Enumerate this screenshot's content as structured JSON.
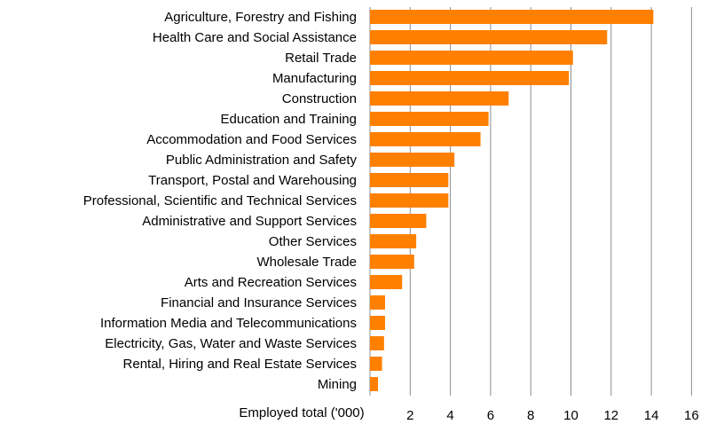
{
  "chart_data": {
    "type": "bar",
    "orientation": "horizontal",
    "xlabel": "Employed total ('000)",
    "xlim": [
      0,
      16
    ],
    "xticks": [
      2,
      4,
      6,
      8,
      10,
      12,
      14,
      16
    ],
    "grid": true,
    "bar_color": "#FF8000",
    "categories": [
      "Agriculture, Forestry and Fishing",
      "Health Care and Social Assistance",
      "Retail Trade",
      "Manufacturing",
      "Construction",
      "Education and Training",
      "Accommodation and Food Services",
      "Public Administration and Safety",
      "Transport, Postal and Warehousing",
      "Professional, Scientific and Technical Services",
      "Administrative and Support Services",
      "Other Services",
      "Wholesale Trade",
      "Arts and Recreation Services",
      "Financial and Insurance Services",
      "Information Media and Telecommunications",
      "Electricity, Gas, Water and Waste Services",
      "Rental, Hiring and Real Estate Services",
      "Mining"
    ],
    "values": [
      14.1,
      11.8,
      10.1,
      9.9,
      6.9,
      5.9,
      5.5,
      4.2,
      3.9,
      3.9,
      2.8,
      2.3,
      2.2,
      1.6,
      0.75,
      0.75,
      0.7,
      0.6,
      0.4
    ]
  }
}
